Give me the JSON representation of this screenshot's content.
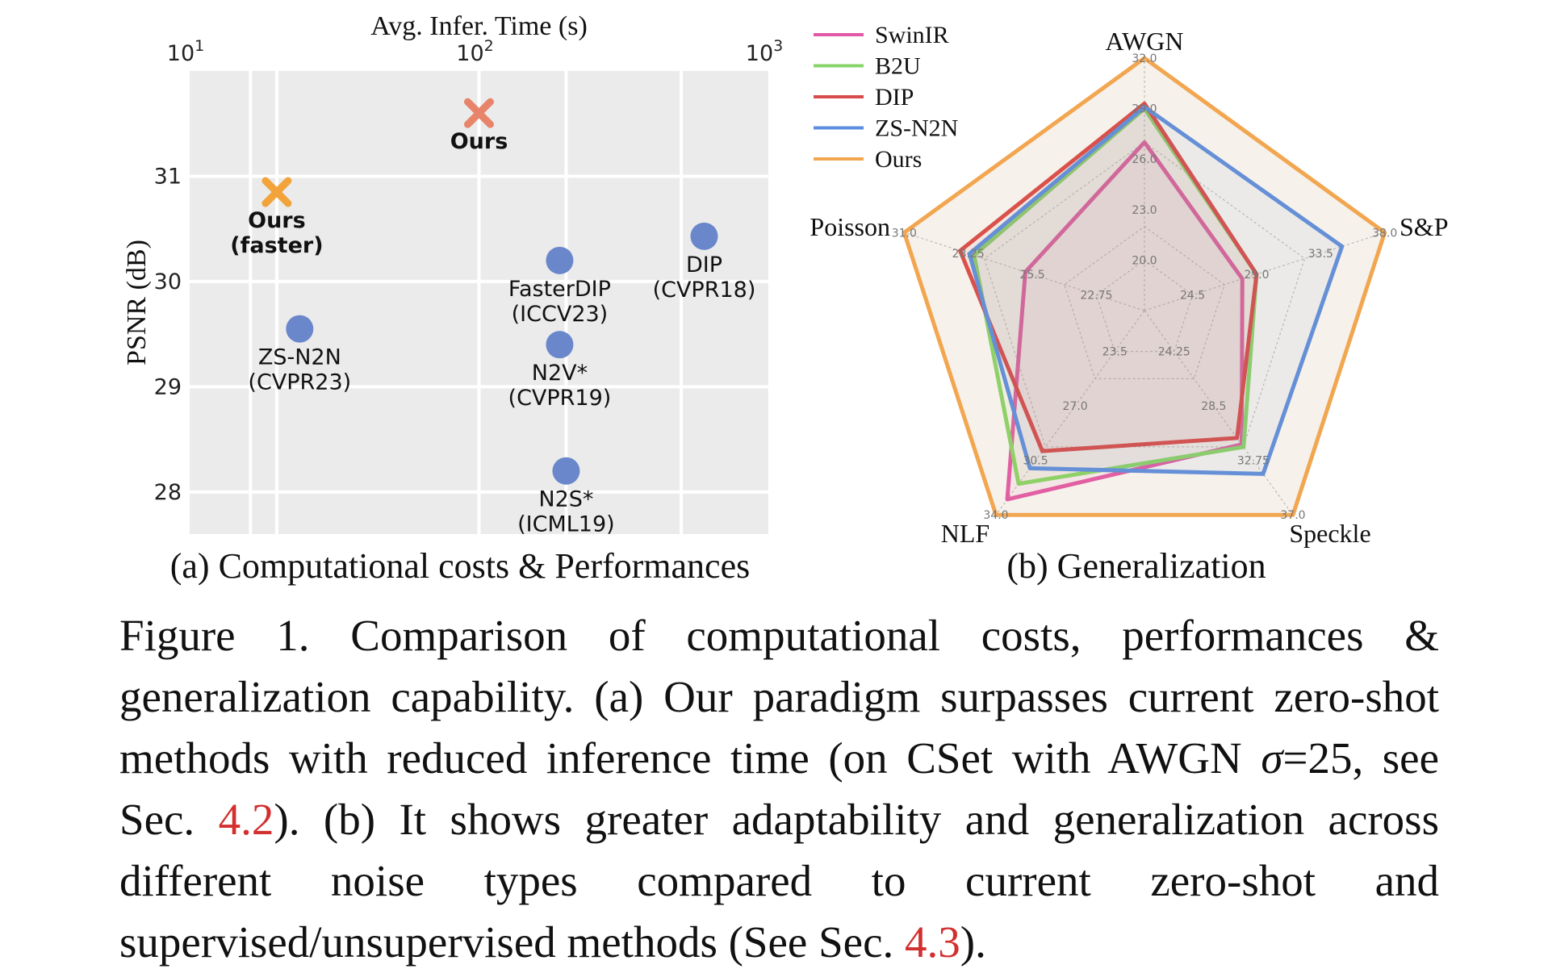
{
  "chart_data": [
    {
      "type": "scatter",
      "xlabel": "Avg. Infer. Time (s)",
      "ylabel": "PSNR (dB)",
      "x_scale": "log",
      "x_ticks": [
        10,
        100,
        1000
      ],
      "x_tick_labels": [
        {
          "base": "10",
          "exp": "1"
        },
        {
          "base": "10",
          "exp": "2"
        },
        {
          "base": "10",
          "exp": "3"
        }
      ],
      "xlim": [
        10,
        1000
      ],
      "ylim": [
        27.6,
        32.0
      ],
      "y_ticks": [
        28,
        29,
        30,
        31
      ],
      "y_tick_labels": [
        "28",
        "29",
        "30",
        "31"
      ],
      "grid": true,
      "points": [
        {
          "label": "Ours",
          "x": 100,
          "y": 31.6,
          "marker": "x",
          "color": "#e8846a",
          "bold": true
        },
        {
          "label": "Ours\n(faster)",
          "x": 20,
          "y": 30.85,
          "marker": "x",
          "color": "#f2a33a",
          "bold": true
        },
        {
          "label": "ZS-N2N\n(CVPR23)",
          "x": 24,
          "y": 29.55,
          "marker": "o",
          "color": "#6a87cc",
          "bold": false
        },
        {
          "label": "FasterDIP\n(ICCV23)",
          "x": 190,
          "y": 30.2,
          "marker": "o",
          "color": "#6a87cc",
          "bold": false
        },
        {
          "label": "DIP\n(CVPR18)",
          "x": 600,
          "y": 30.43,
          "marker": "o",
          "color": "#6a87cc",
          "bold": false
        },
        {
          "label": "N2V*\n(CVPR19)",
          "x": 190,
          "y": 29.4,
          "marker": "o",
          "color": "#6a87cc",
          "bold": false
        },
        {
          "label": "N2S*\n(ICML19)",
          "x": 200,
          "y": 28.2,
          "marker": "o",
          "color": "#6a87cc",
          "bold": false
        }
      ],
      "caption": "(a) Computational costs & Performances"
    },
    {
      "type": "radar",
      "axes": [
        {
          "name": "AWGN",
          "min": 20.0,
          "max": 32.0,
          "rings": [
            "20.0",
            "23.0",
            "26.0",
            "29.0",
            "32.0"
          ]
        },
        {
          "name": "S&P",
          "min": 24.5,
          "max": 38.0,
          "rings": [
            "24.5",
            "29.0",
            "33.5",
            "38.0"
          ]
        },
        {
          "name": "Speckle",
          "min": 24.25,
          "max": 37.0,
          "rings": [
            "24.25",
            "28.5",
            "32.75",
            "37.0"
          ]
        },
        {
          "name": "NLF",
          "min": 23.5,
          "max": 34.0,
          "rings": [
            "23.5",
            "27.0",
            "30.5",
            "34.0"
          ]
        },
        {
          "name": "Poisson",
          "min": 22.75,
          "max": 31.0,
          "rings": [
            "22.75",
            "25.5",
            "28.25",
            "31.0"
          ]
        }
      ],
      "series": [
        {
          "name": "SwinIR",
          "color": "#e05aa8",
          "values": [
            27.0,
            28.0,
            31.5,
            33.0,
            25.8
          ]
        },
        {
          "name": "B2U",
          "color": "#88d46a",
          "values": [
            29.0,
            29.0,
            31.7,
            32.0,
            28.0
          ]
        },
        {
          "name": "DIP",
          "color": "#d94a4a",
          "values": [
            29.3,
            29.0,
            31.0,
            29.9,
            28.6
          ]
        },
        {
          "name": "ZS-N2N",
          "color": "#5b8de0",
          "values": [
            29.1,
            35.0,
            33.8,
            31.0,
            28.2
          ]
        },
        {
          "name": "Ours",
          "color": "#f2a650",
          "values": [
            32.0,
            38.0,
            37.0,
            34.0,
            31.0
          ]
        }
      ],
      "legend_position": "top-left",
      "caption": "(b) Generalization"
    }
  ],
  "figure_caption": {
    "p1": "Figure 1.  Comparison of computational costs, performances & generalization capability. (a) Our paradigm surpasses current zero-shot methods with reduced inference time (on CSet with AWGN ",
    "sigma": "σ",
    "p2": "=25, see Sec. ",
    "ref1": "4.2",
    "p3": "). (b) It shows greater adaptability and generalization across different noise types compared to current zero-shot and supervised/unsupervised methods (See Sec. ",
    "ref2": "4.3",
    "p4": ")."
  }
}
